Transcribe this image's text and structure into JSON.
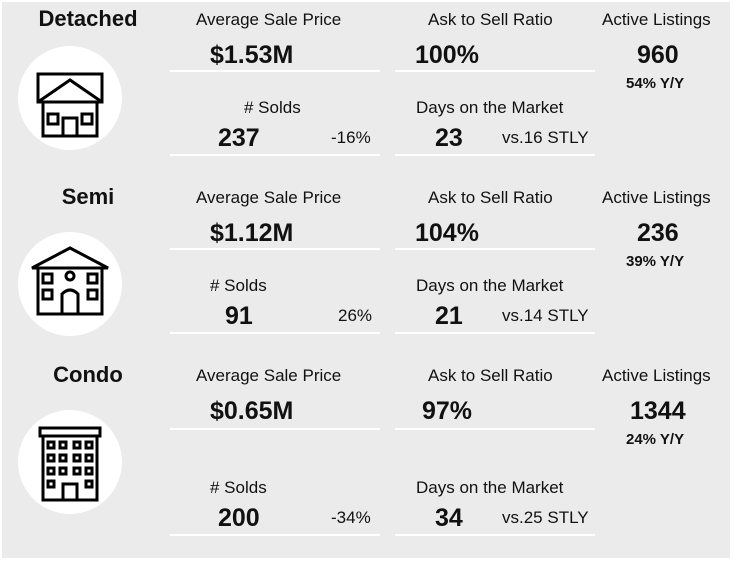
{
  "sections": [
    {
      "type": "Detached",
      "icon": "detached-house-icon",
      "avg_price_label": "Average Sale Price",
      "avg_price": "$1.53M",
      "ask_label": "Ask to Sell Ratio",
      "ask_ratio": "100%",
      "active_label": "Active Listings",
      "active": "960",
      "active_yy": "54% Y/Y",
      "solds_label": "# Solds",
      "solds": "237",
      "solds_change": "-16%",
      "dom_label": "Days on the Market",
      "dom": "23",
      "dom_stly": "vs.16 STLY"
    },
    {
      "type": "Semi",
      "icon": "semi-house-icon",
      "avg_price_label": "Average Sale Price",
      "avg_price": "$1.12M",
      "ask_label": "Ask to Sell Ratio",
      "ask_ratio": "104%",
      "active_label": "Active Listings",
      "active": "236",
      "active_yy": "39% Y/Y",
      "solds_label": "# Solds",
      "solds": "91",
      "solds_change": "26%",
      "dom_label": "Days on the Market",
      "dom": "21",
      "dom_stly": "vs.14 STLY"
    },
    {
      "type": "Condo",
      "icon": "condo-building-icon",
      "avg_price_label": "Average Sale Price",
      "avg_price": "$0.65M",
      "ask_label": "Ask to Sell Ratio",
      "ask_ratio": "97%",
      "active_label": "Active Listings",
      "active": "1344",
      "active_yy": "24% Y/Y",
      "solds_label": "# Solds",
      "solds": "200",
      "solds_change": "-34%",
      "dom_label": "Days on the Market",
      "dom": "34",
      "dom_stly": "vs.25 STLY"
    }
  ],
  "colors": {
    "panel": "#ebebeb",
    "text": "#111111",
    "circle": "#ffffff"
  }
}
